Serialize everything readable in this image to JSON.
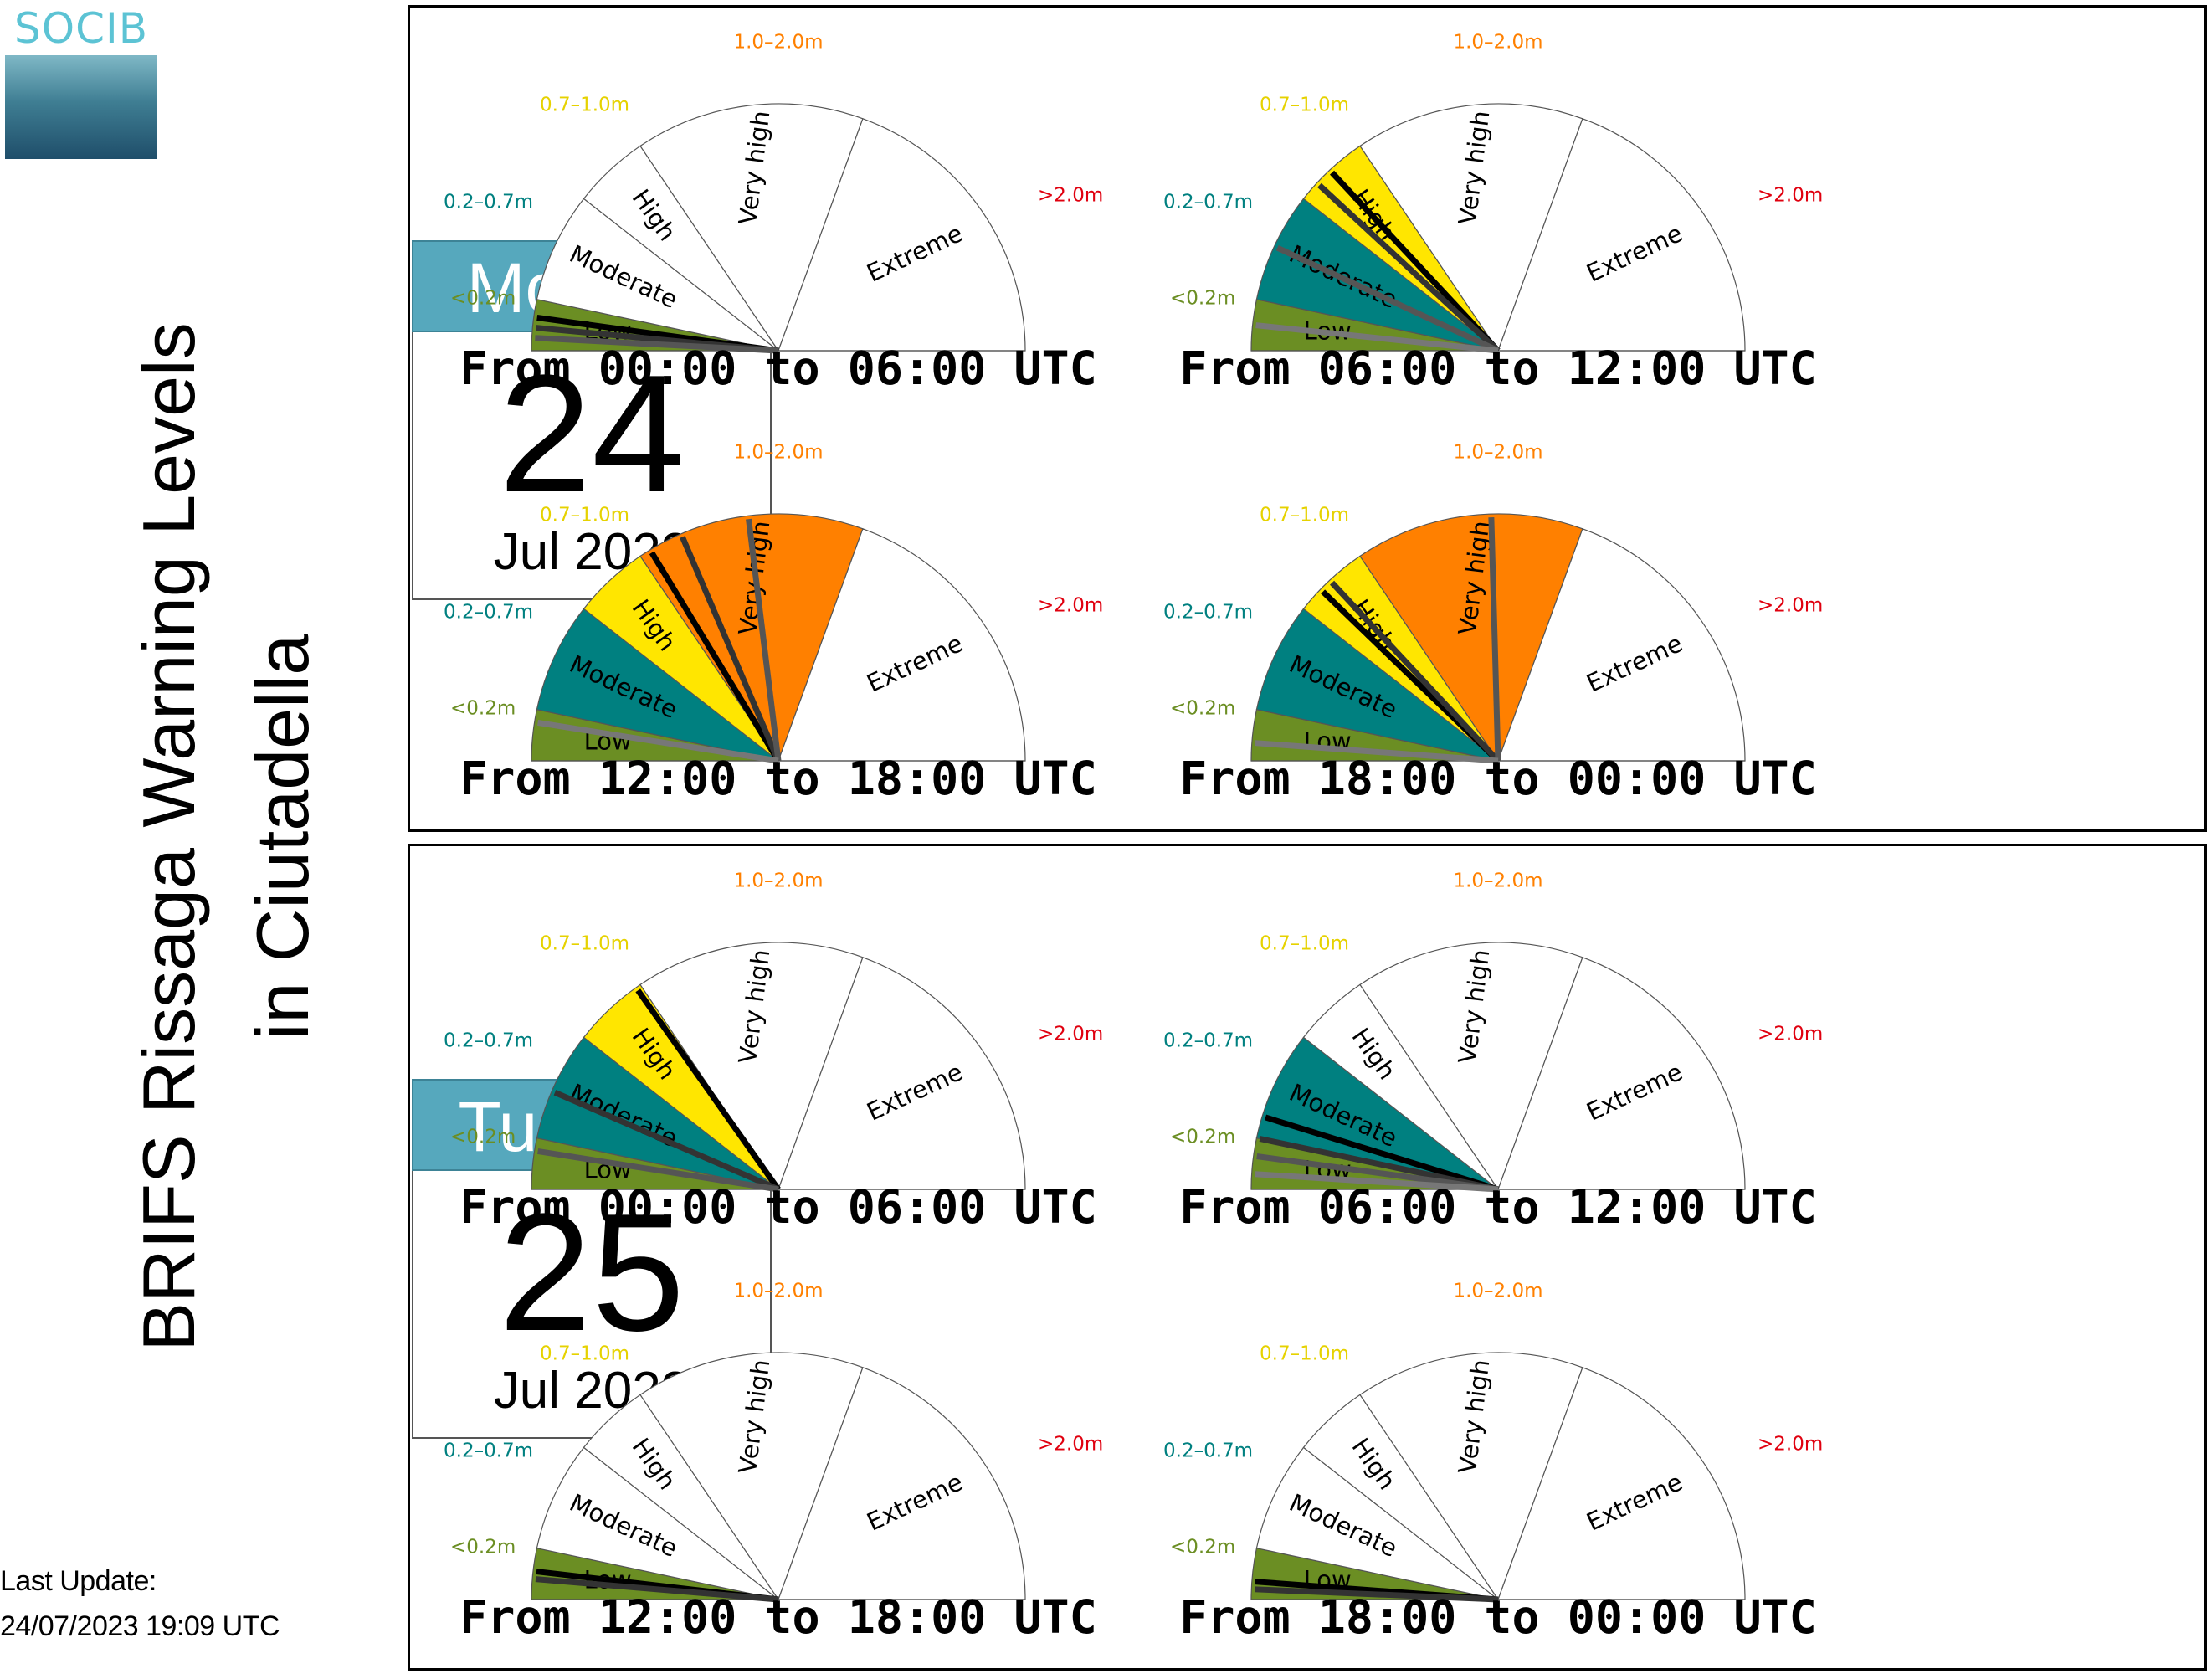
{
  "logo": {
    "text": "SOCIB"
  },
  "title": {
    "line1": "BRIFS Rissaga Warning Levels",
    "line2": "in Ciutadella"
  },
  "last_update": {
    "label": "Last Update:",
    "value": "24/07/2023 19:09 UTC"
  },
  "colors": {
    "low": "#6b8e23",
    "moderate": "#008080",
    "high": "#ffe600",
    "very_high": "#ff8000",
    "extreme": "#e0000f",
    "empty": "#ffffff"
  },
  "chart_data": {
    "type": "gauge",
    "levels": [
      {
        "name": "Low",
        "range": "<0.2m",
        "range_color": "#6b8e23",
        "fill": "#6b8e23"
      },
      {
        "name": "Moderate",
        "range": "0.2–0.7m",
        "range_color": "#008080",
        "fill": "#008080"
      },
      {
        "name": "High",
        "range": "0.7–1.0m",
        "range_color": "#e6d200",
        "fill": "#ffe600"
      },
      {
        "name": "Very high",
        "range": "1.0–2.0m",
        "range_color": "#ff8000",
        "fill": "#ff8000"
      },
      {
        "name": "Extreme",
        "range": ">2.0m",
        "range_color": "#e0000f",
        "fill": "#e0000f"
      }
    ],
    "scale_note": "needle value in meters; sectors at 0.2, 0.7, 1.0, 2.0",
    "days": [
      {
        "weekday": "Monday",
        "day": "24",
        "month_year": "Jul 2023",
        "periods": [
          {
            "label": "From 00:00 to 06:00 UTC",
            "highest_level": "Low",
            "needles_m": [
              0.13,
              0.09,
              0.05
            ]
          },
          {
            "label": "From 06:00 to 12:00 UTC",
            "highest_level": "High",
            "needles_m": [
              0.85,
              0.78,
              0.45,
              0.1
            ]
          },
          {
            "label": "From 12:00 to 18:00 UTC",
            "highest_level": "Very high",
            "needles_m": [
              1.05,
              1.2,
              1.5,
              0.15
            ]
          },
          {
            "label": "From 18:00 to 00:00 UTC",
            "highest_level": "Very high",
            "needles_m": [
              0.8,
              0.85,
              1.6,
              0.07
            ]
          }
        ]
      },
      {
        "weekday": "Tuesday",
        "day": "25",
        "month_year": "Jul 2023",
        "periods": [
          {
            "label": "From 00:00 to 06:00 UTC",
            "highest_level": "High",
            "needles_m": [
              0.98,
              0.42,
              0.15
            ]
          },
          {
            "label": "From 06:00 to 12:00 UTC",
            "highest_level": "Moderate",
            "needles_m": [
              0.3,
              0.2,
              0.13,
              0.06
            ]
          },
          {
            "label": "From 12:00 to 18:00 UTC",
            "highest_level": "Low",
            "needles_m": [
              0.11,
              0.08
            ]
          },
          {
            "label": "From 18:00 to 00:00 UTC",
            "highest_level": "Low",
            "needles_m": [
              0.07,
              0.04
            ]
          }
        ]
      }
    ]
  }
}
